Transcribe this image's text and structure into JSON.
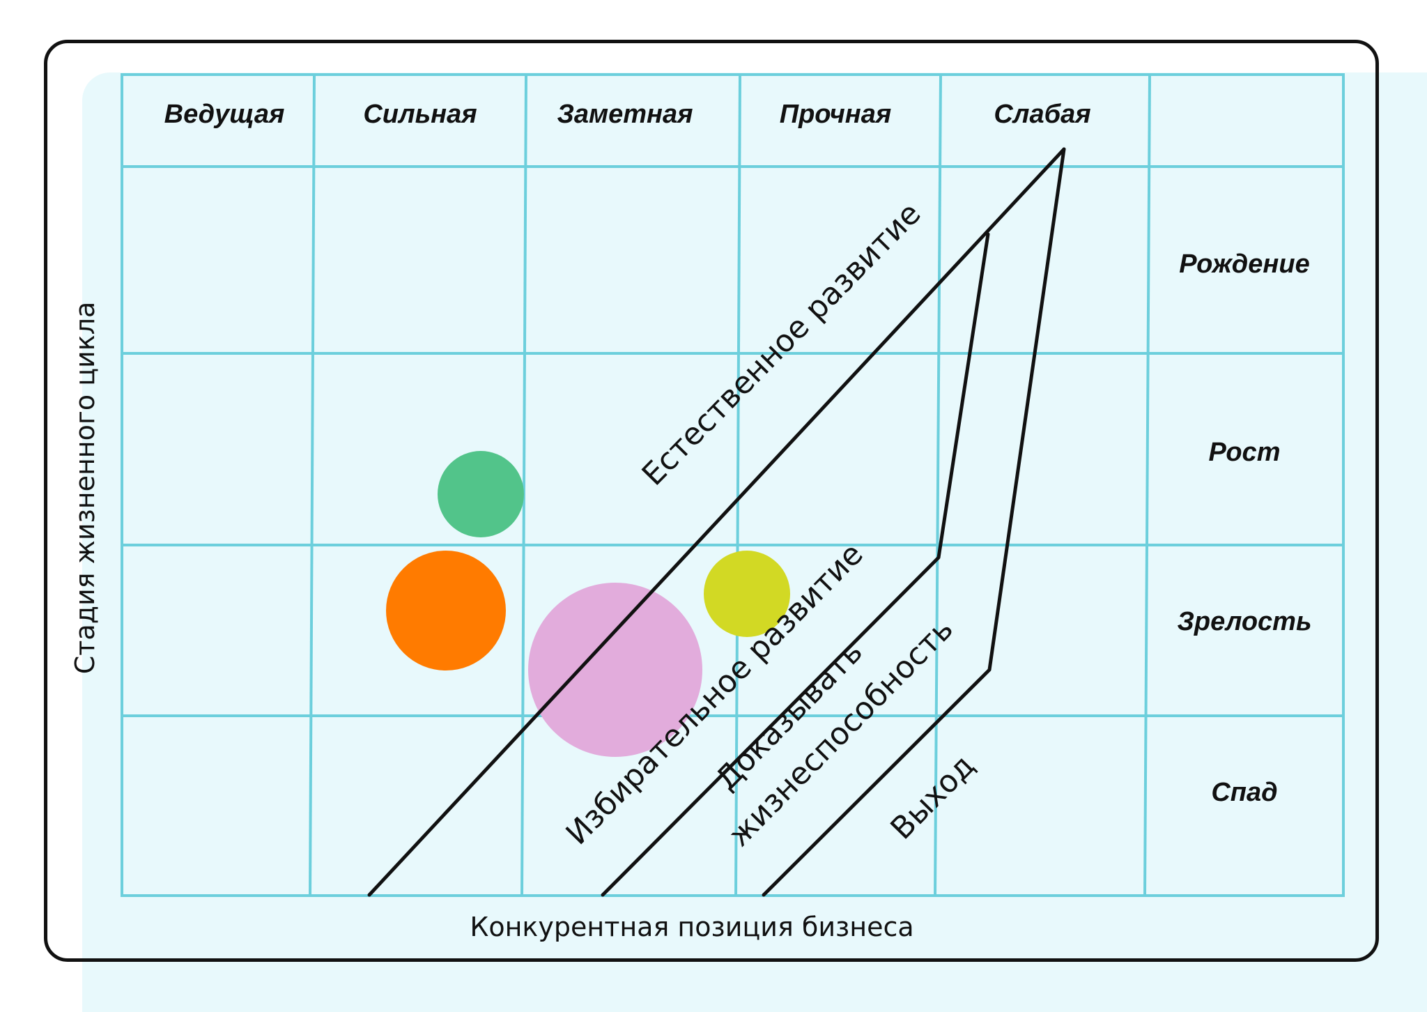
{
  "diagram": {
    "columns": [
      "Ведущая",
      "Сильная",
      "Заметная",
      "Прочная",
      "Слабая",
      ""
    ],
    "rows": [
      "Рождение",
      "Рост",
      "Зрелость",
      "Спад"
    ],
    "x_axis_label": "Конкурентная позиция бизнеса",
    "y_axis_label": "Стадия жизненного цикла",
    "zones": [
      {
        "label": "Естественное развитие"
      },
      {
        "label": "Избирательное развитие"
      },
      {
        "label_line1": "Доказывать",
        "label_line2": "жизнеспособность"
      },
      {
        "label": "Выход"
      }
    ],
    "bubbles": [
      {
        "name": "green",
        "color": "#52c48a"
      },
      {
        "name": "orange",
        "color": "#ff7b00"
      },
      {
        "name": "pink",
        "color": "#e2acdc"
      },
      {
        "name": "yellow",
        "color": "#d2d924"
      }
    ],
    "colors": {
      "grid": "#6ccfdc",
      "background": "#e8f9fc",
      "lines": "#111111"
    }
  }
}
